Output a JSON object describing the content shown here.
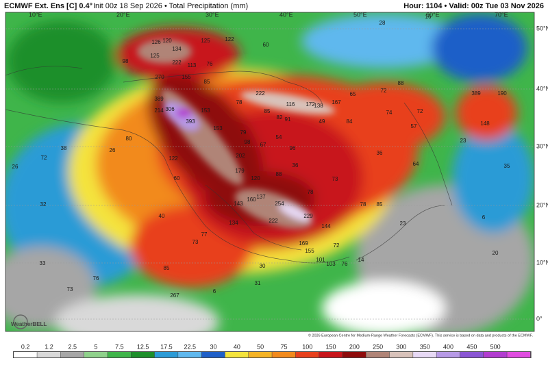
{
  "header": {
    "model": "ECMWF Ext. Ens [C] 0.4°",
    "init": "Init 00z 18 Sep 2026 • Total Precipitation (mm)",
    "valid": "Hour: 1104 • Valid: 00z Tue 03 Nov 2026"
  },
  "map": {
    "lon_labels": [
      "10°E",
      "20°E",
      "30°E",
      "40°E",
      "50°E",
      "60°E",
      "70°E"
    ],
    "lat_labels": [
      "50°N",
      "40°N",
      "30°N",
      "20°N",
      "10°N",
      "0°"
    ],
    "values": [
      126,
      120,
      134,
      125,
      122,
      60,
      98,
      125,
      222,
      113,
      76,
      270,
      85,
      155,
      389,
      306,
      153,
      393,
      214,
      78,
      85,
      222,
      116,
      172,
      138,
      167,
      65,
      72,
      88,
      190,
      389,
      148,
      74,
      72,
      57,
      79,
      98,
      67,
      82,
      91,
      54,
      96,
      49,
      84,
      122,
      202,
      153,
      120,
      179,
      88,
      36,
      73,
      64,
      36,
      78,
      137,
      160,
      143,
      254,
      222,
      229,
      134,
      144,
      169,
      155,
      72,
      101,
      103,
      76,
      14,
      78,
      85,
      60,
      40,
      77,
      73,
      85,
      267,
      26,
      80,
      38,
      72,
      26,
      32,
      33,
      76,
      73,
      30,
      31,
      6,
      16,
      6,
      20,
      23,
      35,
      23,
      28
    ],
    "copyright": "© 2026 European Centre for Medium-Range Weather Forecasts (ECMWF). This service is based on data and products of the ECMWF.",
    "logo": "WeatherBELL"
  },
  "colorbar": {
    "labels": [
      "0.2",
      "1.2",
      "2.5",
      "5",
      "7.5",
      "12.5",
      "17.5",
      "22.5",
      "30",
      "40",
      "50",
      "75",
      "100",
      "150",
      "200",
      "250",
      "300",
      "350",
      "400",
      "450",
      "500"
    ],
    "colors": [
      "#ffffff",
      "#d9d9d9",
      "#a6a6a6",
      "#8fd18b",
      "#3fb54a",
      "#1d8f2a",
      "#2c9bd6",
      "#5fb8ee",
      "#1f5fc8",
      "#f4e33c",
      "#f5b324",
      "#f28a1c",
      "#e8401c",
      "#c8141a",
      "#8e0b0b",
      "#b08477",
      "#d8c2ba",
      "#e7d9f5",
      "#b79ae6",
      "#8a55d4",
      "#b23cd0",
      "#e04ce0"
    ]
  }
}
